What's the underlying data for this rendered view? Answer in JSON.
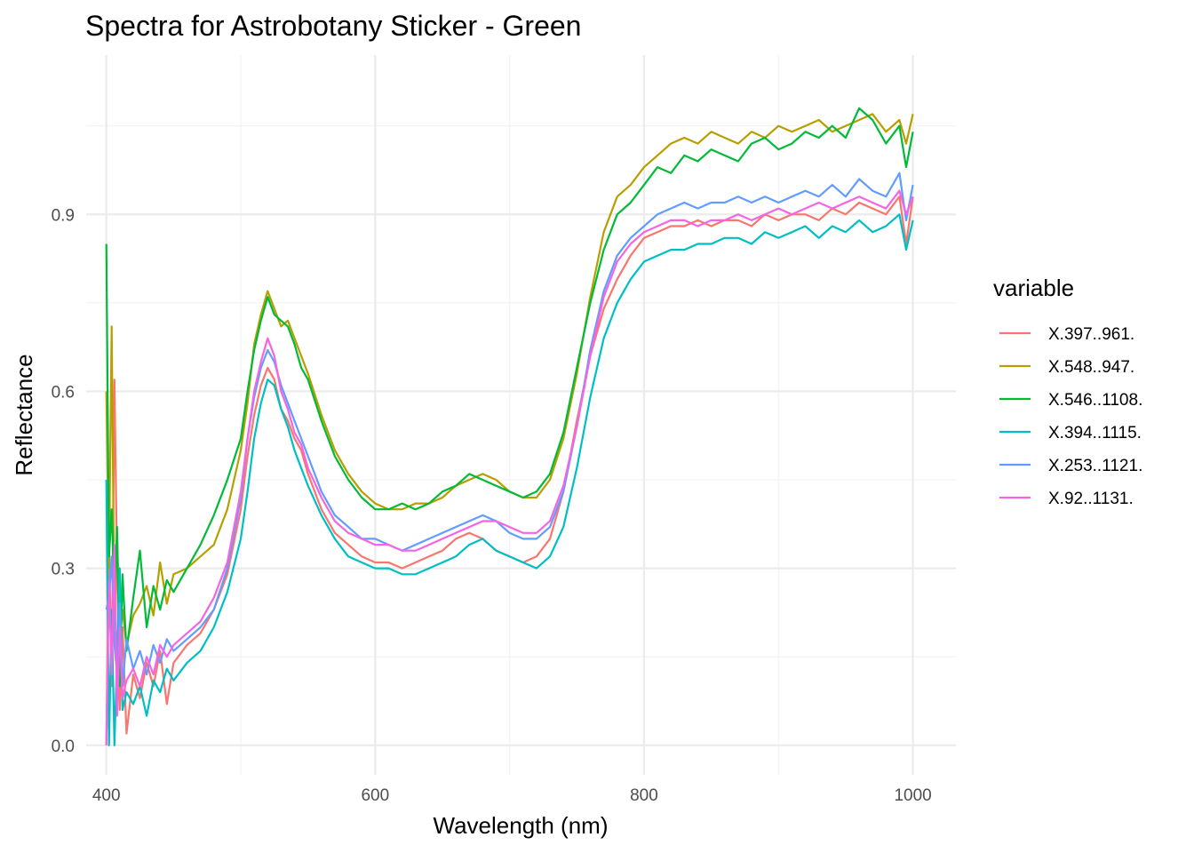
{
  "chart_data": {
    "type": "line",
    "title": "Spectra for Astrobotany Sticker - Green",
    "xlabel": "Wavelength (nm)",
    "ylabel": "Reflectance",
    "xlim": [
      385,
      1032
    ],
    "ylim": [
      -0.05,
      1.17
    ],
    "x_ticks": [
      400,
      600,
      800,
      1000
    ],
    "x_tick_labels": [
      "400",
      "600",
      "800",
      "1000"
    ],
    "x_minor_ticks": [
      500,
      700,
      900
    ],
    "y_ticks": [
      0.0,
      0.3,
      0.6,
      0.9
    ],
    "y_tick_labels": [
      "0.0",
      "0.3",
      "0.6",
      "0.9"
    ],
    "y_minor_ticks": [
      0.15,
      0.45,
      0.75,
      1.05
    ],
    "grid": true,
    "legend": {
      "title": "variable",
      "position": "right"
    },
    "series": [
      {
        "name": "X.397..961.",
        "color": "#F8766D",
        "x": [
          400,
          402,
          404,
          406,
          408,
          410,
          412,
          415,
          420,
          425,
          430,
          435,
          440,
          445,
          450,
          460,
          470,
          480,
          490,
          500,
          505,
          510,
          515,
          520,
          525,
          530,
          535,
          540,
          545,
          550,
          560,
          570,
          580,
          590,
          600,
          610,
          620,
          630,
          640,
          650,
          660,
          670,
          680,
          690,
          700,
          710,
          720,
          730,
          740,
          750,
          760,
          770,
          780,
          790,
          800,
          810,
          820,
          830,
          840,
          850,
          860,
          870,
          880,
          890,
          900,
          910,
          920,
          930,
          940,
          950,
          960,
          970,
          980,
          990,
          995,
          1000
        ],
        "y": [
          0.0,
          0.35,
          0.1,
          0.62,
          0.3,
          0.06,
          0.2,
          0.02,
          0.12,
          0.08,
          0.14,
          0.1,
          0.16,
          0.07,
          0.14,
          0.17,
          0.19,
          0.23,
          0.29,
          0.4,
          0.49,
          0.56,
          0.61,
          0.64,
          0.62,
          0.57,
          0.55,
          0.52,
          0.5,
          0.46,
          0.4,
          0.36,
          0.34,
          0.32,
          0.31,
          0.31,
          0.3,
          0.31,
          0.32,
          0.33,
          0.35,
          0.36,
          0.35,
          0.33,
          0.32,
          0.31,
          0.32,
          0.35,
          0.43,
          0.55,
          0.66,
          0.74,
          0.79,
          0.83,
          0.86,
          0.87,
          0.88,
          0.88,
          0.89,
          0.88,
          0.89,
          0.89,
          0.88,
          0.9,
          0.89,
          0.9,
          0.9,
          0.89,
          0.91,
          0.9,
          0.92,
          0.91,
          0.9,
          0.93,
          0.85,
          0.93
        ]
      },
      {
        "name": "X.548..947.",
        "color": "#B79F00",
        "x": [
          400,
          402,
          404,
          406,
          408,
          410,
          412,
          415,
          420,
          425,
          430,
          435,
          440,
          445,
          450,
          460,
          470,
          480,
          490,
          500,
          505,
          510,
          515,
          520,
          525,
          530,
          535,
          540,
          545,
          550,
          560,
          570,
          580,
          590,
          600,
          610,
          620,
          630,
          640,
          650,
          660,
          670,
          680,
          690,
          700,
          710,
          720,
          730,
          740,
          750,
          760,
          770,
          780,
          790,
          800,
          810,
          820,
          830,
          840,
          850,
          860,
          870,
          880,
          890,
          900,
          910,
          920,
          930,
          940,
          950,
          960,
          970,
          980,
          990,
          995,
          1000
        ],
        "y": [
          0.6,
          0.3,
          0.71,
          0.2,
          0.36,
          0.18,
          0.23,
          0.17,
          0.22,
          0.24,
          0.27,
          0.22,
          0.31,
          0.24,
          0.29,
          0.3,
          0.32,
          0.34,
          0.4,
          0.5,
          0.58,
          0.68,
          0.73,
          0.77,
          0.74,
          0.71,
          0.72,
          0.69,
          0.66,
          0.63,
          0.56,
          0.5,
          0.46,
          0.43,
          0.41,
          0.4,
          0.4,
          0.41,
          0.41,
          0.42,
          0.44,
          0.45,
          0.46,
          0.45,
          0.43,
          0.42,
          0.42,
          0.45,
          0.52,
          0.63,
          0.76,
          0.87,
          0.93,
          0.95,
          0.98,
          1.0,
          1.02,
          1.03,
          1.02,
          1.04,
          1.03,
          1.02,
          1.04,
          1.03,
          1.05,
          1.04,
          1.05,
          1.06,
          1.04,
          1.05,
          1.06,
          1.07,
          1.04,
          1.06,
          1.02,
          1.07
        ]
      },
      {
        "name": "X.546..1108.",
        "color": "#00BA38",
        "x": [
          400,
          402,
          404,
          406,
          408,
          410,
          412,
          415,
          420,
          425,
          430,
          435,
          440,
          445,
          450,
          460,
          470,
          480,
          490,
          500,
          505,
          510,
          515,
          520,
          525,
          530,
          535,
          540,
          545,
          550,
          560,
          570,
          580,
          590,
          600,
          610,
          620,
          630,
          640,
          650,
          660,
          670,
          680,
          690,
          700,
          710,
          720,
          730,
          740,
          750,
          760,
          770,
          780,
          790,
          800,
          810,
          820,
          830,
          840,
          850,
          860,
          870,
          880,
          890,
          900,
          910,
          920,
          930,
          940,
          950,
          960,
          970,
          980,
          990,
          995,
          1000
        ],
        "y": [
          0.85,
          0.32,
          0.4,
          0.25,
          0.37,
          0.1,
          0.29,
          0.16,
          0.25,
          0.33,
          0.2,
          0.27,
          0.23,
          0.28,
          0.26,
          0.3,
          0.34,
          0.39,
          0.45,
          0.52,
          0.6,
          0.67,
          0.72,
          0.76,
          0.73,
          0.72,
          0.71,
          0.68,
          0.64,
          0.62,
          0.55,
          0.49,
          0.45,
          0.42,
          0.4,
          0.4,
          0.41,
          0.4,
          0.41,
          0.43,
          0.44,
          0.46,
          0.45,
          0.44,
          0.43,
          0.42,
          0.43,
          0.46,
          0.53,
          0.64,
          0.75,
          0.84,
          0.9,
          0.92,
          0.95,
          0.98,
          0.97,
          1.0,
          0.99,
          1.01,
          1.0,
          0.99,
          1.02,
          1.03,
          1.01,
          1.02,
          1.04,
          1.03,
          1.05,
          1.03,
          1.08,
          1.06,
          1.02,
          1.05,
          0.98,
          1.04
        ]
      },
      {
        "name": "X.394..1115.",
        "color": "#00BFC4",
        "x": [
          400,
          402,
          404,
          406,
          408,
          410,
          412,
          415,
          420,
          425,
          430,
          435,
          440,
          445,
          450,
          460,
          470,
          480,
          490,
          500,
          505,
          510,
          515,
          520,
          525,
          530,
          535,
          540,
          545,
          550,
          560,
          570,
          580,
          590,
          600,
          610,
          620,
          630,
          640,
          650,
          660,
          670,
          680,
          690,
          700,
          710,
          720,
          730,
          740,
          750,
          760,
          770,
          780,
          790,
          800,
          810,
          820,
          830,
          840,
          850,
          860,
          870,
          880,
          890,
          900,
          910,
          920,
          930,
          940,
          950,
          960,
          970,
          980,
          990,
          995,
          1000
        ],
        "y": [
          0.45,
          0.0,
          0.23,
          0.0,
          0.15,
          0.3,
          0.06,
          0.09,
          0.07,
          0.1,
          0.05,
          0.11,
          0.09,
          0.13,
          0.11,
          0.14,
          0.16,
          0.2,
          0.26,
          0.35,
          0.43,
          0.52,
          0.58,
          0.62,
          0.61,
          0.57,
          0.54,
          0.5,
          0.47,
          0.44,
          0.39,
          0.35,
          0.32,
          0.31,
          0.3,
          0.3,
          0.29,
          0.29,
          0.3,
          0.31,
          0.32,
          0.34,
          0.35,
          0.33,
          0.32,
          0.31,
          0.3,
          0.32,
          0.37,
          0.47,
          0.59,
          0.69,
          0.75,
          0.79,
          0.82,
          0.83,
          0.84,
          0.84,
          0.85,
          0.85,
          0.86,
          0.86,
          0.85,
          0.87,
          0.86,
          0.87,
          0.88,
          0.86,
          0.88,
          0.87,
          0.89,
          0.87,
          0.88,
          0.9,
          0.84,
          0.89
        ]
      },
      {
        "name": "X.253..1121.",
        "color": "#619CFF",
        "x": [
          400,
          402,
          404,
          406,
          408,
          410,
          412,
          415,
          420,
          425,
          430,
          435,
          440,
          445,
          450,
          460,
          470,
          480,
          490,
          500,
          505,
          510,
          515,
          520,
          525,
          530,
          535,
          540,
          545,
          550,
          560,
          570,
          580,
          590,
          600,
          610,
          620,
          630,
          640,
          650,
          660,
          670,
          680,
          690,
          700,
          710,
          720,
          730,
          740,
          750,
          760,
          770,
          780,
          790,
          800,
          810,
          820,
          830,
          840,
          850,
          860,
          870,
          880,
          890,
          900,
          910,
          920,
          930,
          940,
          950,
          960,
          970,
          980,
          990,
          995,
          1000
        ],
        "y": [
          0.23,
          0.25,
          0.32,
          0.17,
          0.12,
          0.24,
          0.1,
          0.18,
          0.13,
          0.16,
          0.12,
          0.17,
          0.14,
          0.18,
          0.16,
          0.18,
          0.2,
          0.23,
          0.3,
          0.42,
          0.52,
          0.59,
          0.64,
          0.67,
          0.65,
          0.61,
          0.58,
          0.55,
          0.52,
          0.49,
          0.43,
          0.39,
          0.37,
          0.35,
          0.35,
          0.34,
          0.33,
          0.34,
          0.35,
          0.36,
          0.37,
          0.38,
          0.39,
          0.38,
          0.36,
          0.35,
          0.35,
          0.37,
          0.43,
          0.54,
          0.67,
          0.77,
          0.83,
          0.86,
          0.88,
          0.9,
          0.91,
          0.92,
          0.91,
          0.92,
          0.92,
          0.93,
          0.92,
          0.93,
          0.92,
          0.93,
          0.94,
          0.93,
          0.95,
          0.93,
          0.96,
          0.94,
          0.93,
          0.97,
          0.89,
          0.95
        ]
      },
      {
        "name": "X.92..1131.",
        "color": "#F564E3",
        "x": [
          400,
          402,
          404,
          406,
          408,
          410,
          412,
          415,
          420,
          425,
          430,
          435,
          440,
          445,
          450,
          460,
          470,
          480,
          490,
          500,
          505,
          510,
          515,
          520,
          525,
          530,
          535,
          540,
          545,
          550,
          560,
          570,
          580,
          590,
          600,
          610,
          620,
          630,
          640,
          650,
          660,
          670,
          680,
          690,
          700,
          710,
          720,
          730,
          740,
          750,
          760,
          770,
          780,
          790,
          800,
          810,
          820,
          830,
          840,
          850,
          860,
          870,
          880,
          890,
          900,
          910,
          920,
          930,
          940,
          950,
          960,
          970,
          980,
          990,
          995,
          1000
        ],
        "y": [
          0.0,
          0.28,
          0.12,
          0.34,
          0.05,
          0.2,
          0.08,
          0.11,
          0.13,
          0.1,
          0.15,
          0.12,
          0.17,
          0.15,
          0.17,
          0.19,
          0.21,
          0.25,
          0.31,
          0.43,
          0.52,
          0.6,
          0.65,
          0.69,
          0.66,
          0.6,
          0.57,
          0.53,
          0.51,
          0.47,
          0.42,
          0.38,
          0.36,
          0.35,
          0.34,
          0.34,
          0.33,
          0.33,
          0.34,
          0.35,
          0.36,
          0.37,
          0.38,
          0.38,
          0.37,
          0.36,
          0.36,
          0.38,
          0.44,
          0.54,
          0.66,
          0.76,
          0.82,
          0.85,
          0.87,
          0.88,
          0.89,
          0.89,
          0.88,
          0.89,
          0.89,
          0.9,
          0.89,
          0.9,
          0.91,
          0.9,
          0.91,
          0.92,
          0.91,
          0.92,
          0.93,
          0.92,
          0.91,
          0.94,
          0.9,
          0.93
        ]
      }
    ]
  }
}
